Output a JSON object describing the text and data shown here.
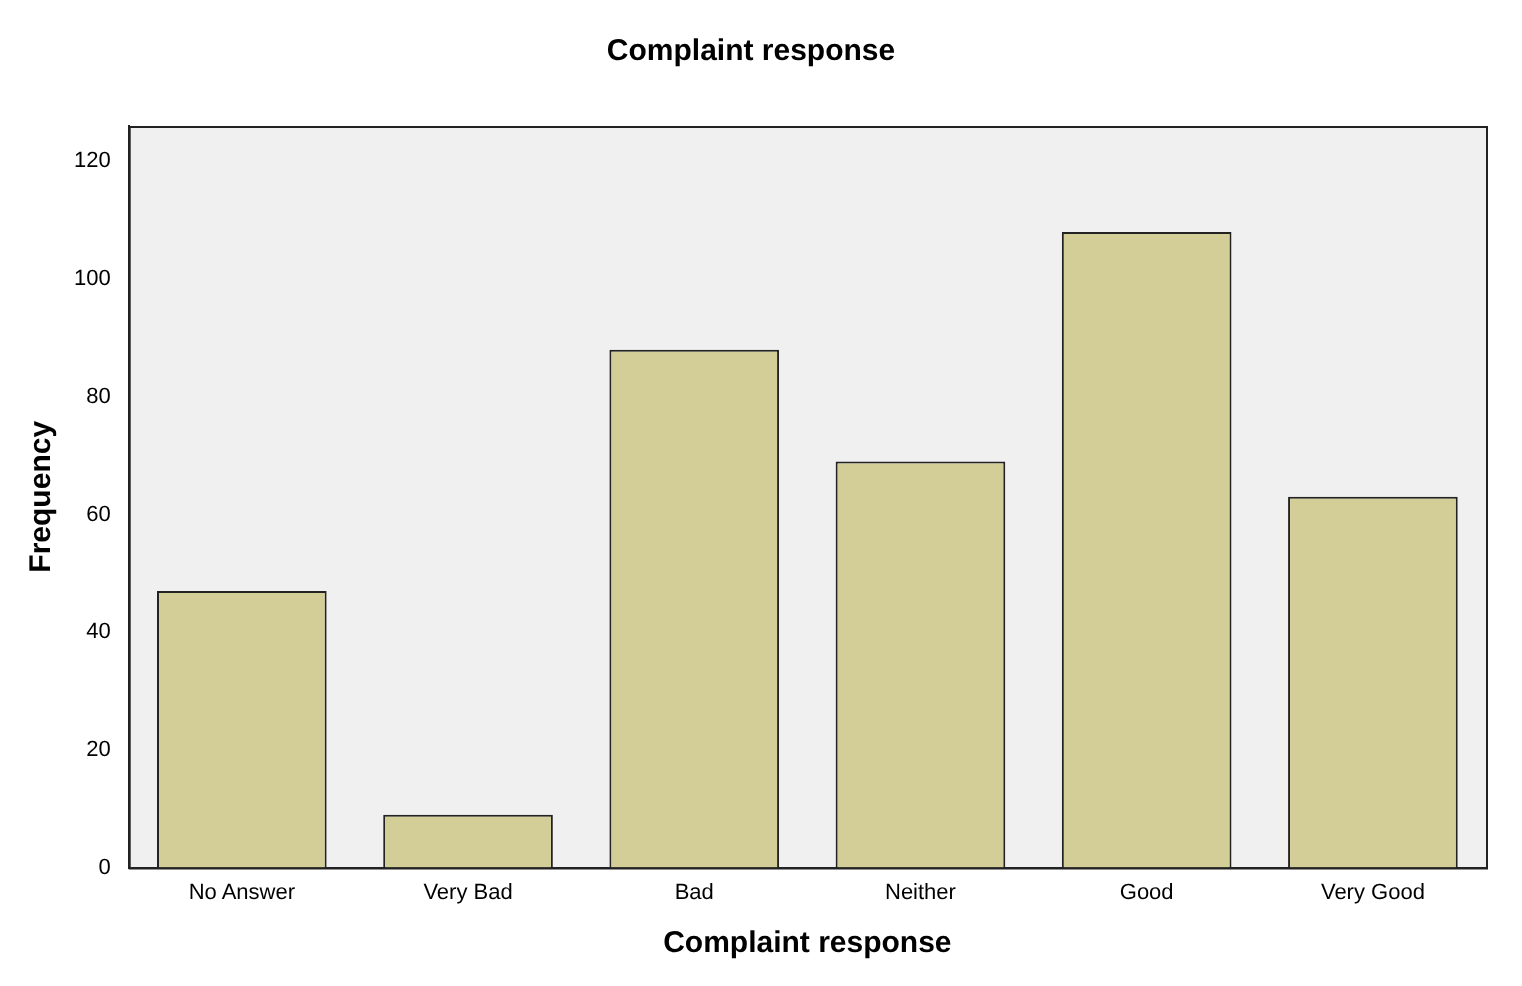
{
  "chart_data": {
    "type": "bar",
    "title": "Complaint response",
    "xlabel": "Complaint response",
    "ylabel": "Frequency",
    "categories": [
      "No Answer",
      "Very Bad",
      "Bad",
      "Neither",
      "Good",
      "Very Good"
    ],
    "values": [
      47,
      9,
      88,
      69,
      108,
      63
    ],
    "color": "#d3ce97",
    "ylim": [
      0,
      126
    ],
    "yticks": [
      0,
      20,
      40,
      60,
      80,
      100,
      120
    ],
    "grid": false,
    "legend": false
  }
}
